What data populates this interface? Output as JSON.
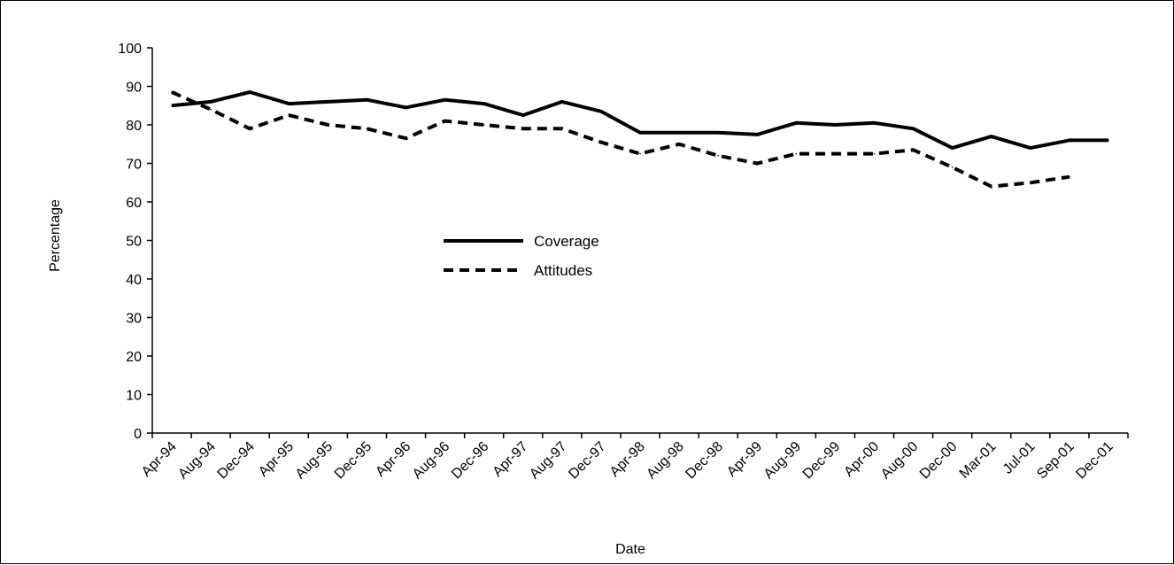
{
  "chart_data": {
    "type": "line",
    "xlabel": "Date",
    "ylabel": "Percentage",
    "ylim": [
      0,
      100
    ],
    "yticks": [
      0,
      10,
      20,
      30,
      40,
      50,
      60,
      70,
      80,
      90,
      100
    ],
    "grid": false,
    "legend_position": "center",
    "categories": [
      "Apr-94",
      "Aug-94",
      "Dec-94",
      "Apr-95",
      "Aug-95",
      "Dec-95",
      "Apr-96",
      "Aug-96",
      "Dec-96",
      "Apr-97",
      "Aug-97",
      "Dec-97",
      "Apr-98",
      "Aug-98",
      "Dec-98",
      "Apr-99",
      "Aug-99",
      "Dec-99",
      "Apr-00",
      "Aug-00",
      "Dec-00",
      "Mar-01",
      "Jul-01",
      "Sep-01",
      "Dec-01"
    ],
    "series": [
      {
        "name": "Coverage",
        "style": "solid",
        "color": "#000000",
        "values": [
          85,
          86,
          88.5,
          85.5,
          86,
          86.5,
          84.5,
          86.5,
          85.5,
          82.5,
          86,
          83.5,
          78,
          78,
          78,
          77.5,
          80.5,
          80,
          80.5,
          79,
          74,
          77,
          74,
          76,
          76
        ]
      },
      {
        "name": "Attitudes",
        "style": "dashed",
        "color": "#000000",
        "values": [
          88.5,
          84,
          79,
          82.5,
          80,
          79,
          76.5,
          81,
          80,
          79,
          79,
          75.5,
          72.5,
          75,
          72,
          70,
          72.5,
          72.5,
          72.5,
          73.5,
          69,
          64,
          65,
          66.5,
          null
        ]
      }
    ]
  }
}
